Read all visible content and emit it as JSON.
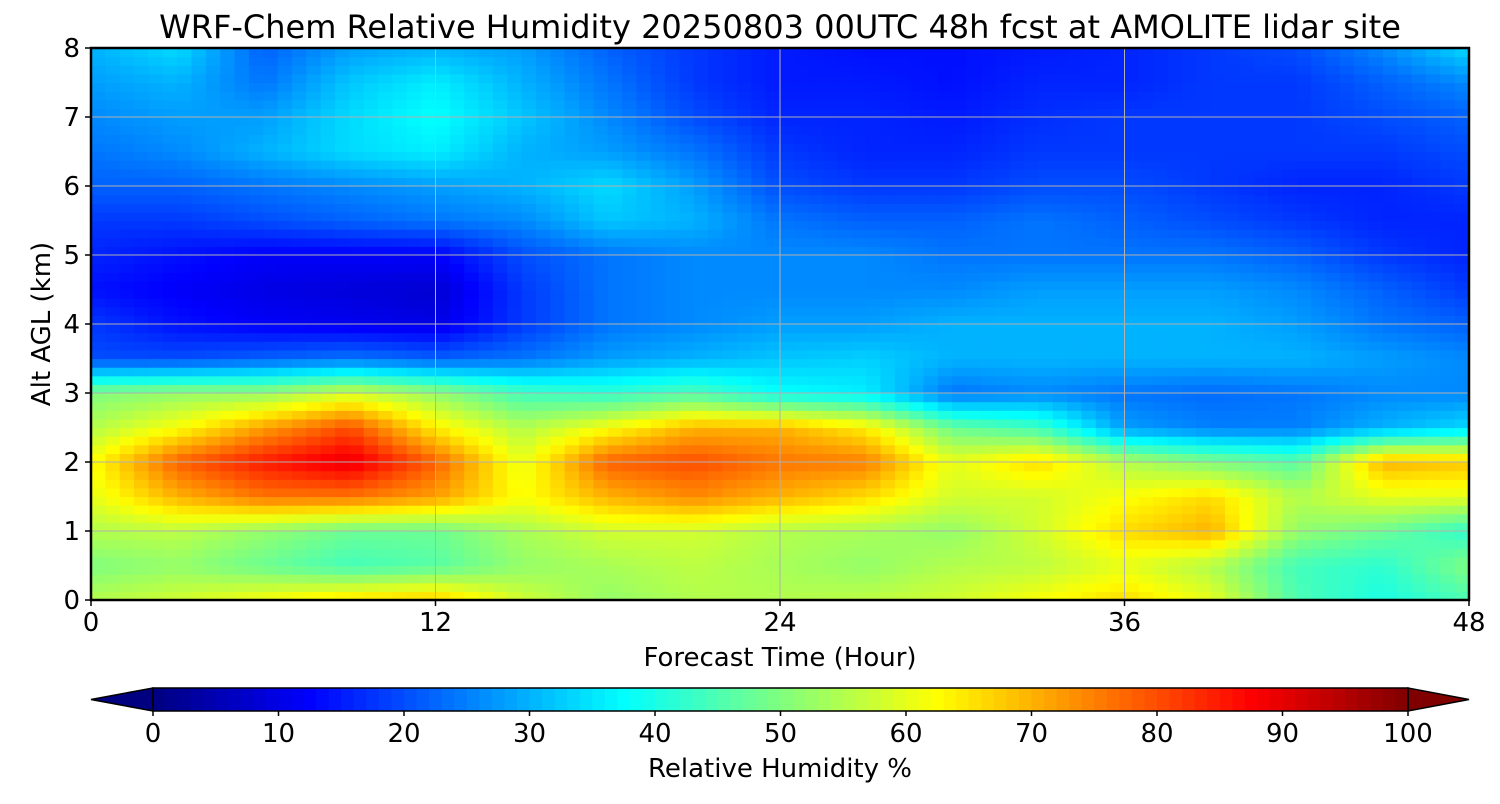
{
  "chart_data": {
    "type": "heatmap",
    "title": "WRF-Chem Relative Humidity 20250803 00UTC 48h fcst at AMOLITE lidar site",
    "xlabel": "Forecast Time (Hour)",
    "ylabel": "Alt AGL (km)",
    "xlim": [
      0,
      48
    ],
    "ylim": [
      0,
      8
    ],
    "xticks": [
      0,
      12,
      24,
      36,
      48
    ],
    "yticks": [
      0,
      1,
      2,
      3,
      4,
      5,
      6,
      7,
      8
    ],
    "grid": true,
    "colormap": "jet",
    "colorbar": {
      "label": "Relative Humidity %",
      "range": [
        0,
        100
      ],
      "ticks": [
        0,
        10,
        20,
        30,
        40,
        50,
        60,
        70,
        80,
        90,
        100
      ],
      "extend": "both",
      "orientation": "horizontal",
      "levels": 100
    },
    "x": [
      0,
      3,
      6,
      9,
      12,
      15,
      18,
      21,
      24,
      27,
      30,
      33,
      36,
      39,
      42,
      45,
      48
    ],
    "y": [
      0,
      0.5,
      1,
      1.5,
      2,
      2.5,
      3,
      3.5,
      4,
      4.5,
      5,
      5.5,
      6,
      6.5,
      7,
      7.5,
      8
    ],
    "z": [
      [
        55,
        58,
        62,
        66,
        68,
        58,
        52,
        55,
        55,
        56,
        58,
        62,
        66,
        60,
        45,
        40,
        45
      ],
      [
        50,
        52,
        48,
        44,
        46,
        52,
        54,
        56,
        54,
        52,
        55,
        56,
        60,
        55,
        44,
        42,
        50
      ],
      [
        55,
        56,
        52,
        48,
        48,
        54,
        58,
        58,
        55,
        54,
        52,
        58,
        66,
        70,
        52,
        48,
        42
      ],
      [
        60,
        70,
        76,
        76,
        72,
        62,
        70,
        74,
        70,
        66,
        58,
        58,
        62,
        66,
        55,
        60,
        60
      ],
      [
        62,
        78,
        85,
        90,
        78,
        60,
        78,
        80,
        76,
        75,
        60,
        66,
        55,
        50,
        46,
        70,
        68
      ],
      [
        55,
        62,
        72,
        80,
        64,
        55,
        62,
        70,
        70,
        64,
        48,
        44,
        28,
        25,
        25,
        30,
        34
      ],
      [
        50,
        52,
        52,
        58,
        52,
        44,
        42,
        45,
        38,
        36,
        24,
        26,
        24,
        23,
        24,
        26,
        26
      ],
      [
        20,
        20,
        22,
        24,
        22,
        24,
        28,
        30,
        32,
        33,
        30,
        30,
        30,
        30,
        30,
        28,
        26
      ],
      [
        18,
        14,
        12,
        11,
        10,
        18,
        24,
        26,
        28,
        28,
        30,
        30,
        30,
        30,
        28,
        24,
        22
      ],
      [
        14,
        12,
        10,
        9,
        8,
        18,
        24,
        26,
        26,
        26,
        26,
        28,
        28,
        28,
        26,
        22,
        18
      ],
      [
        16,
        14,
        12,
        12,
        12,
        20,
        24,
        26,
        26,
        26,
        24,
        24,
        24,
        24,
        22,
        18,
        16
      ],
      [
        18,
        18,
        20,
        22,
        24,
        26,
        32,
        30,
        24,
        22,
        22,
        24,
        22,
        20,
        18,
        16,
        16
      ],
      [
        22,
        22,
        24,
        26,
        28,
        30,
        34,
        28,
        20,
        18,
        18,
        20,
        20,
        18,
        16,
        16,
        18
      ],
      [
        24,
        26,
        30,
        34,
        36,
        30,
        28,
        24,
        18,
        16,
        16,
        18,
        18,
        18,
        18,
        18,
        20
      ],
      [
        26,
        28,
        28,
        34,
        38,
        32,
        26,
        20,
        16,
        16,
        15,
        17,
        18,
        18,
        18,
        20,
        22
      ],
      [
        28,
        30,
        24,
        32,
        36,
        30,
        24,
        18,
        15,
        15,
        14,
        16,
        16,
        18,
        18,
        22,
        26
      ],
      [
        30,
        34,
        22,
        28,
        30,
        28,
        22,
        18,
        15,
        14,
        14,
        15,
        16,
        18,
        20,
        26,
        34
      ]
    ]
  }
}
